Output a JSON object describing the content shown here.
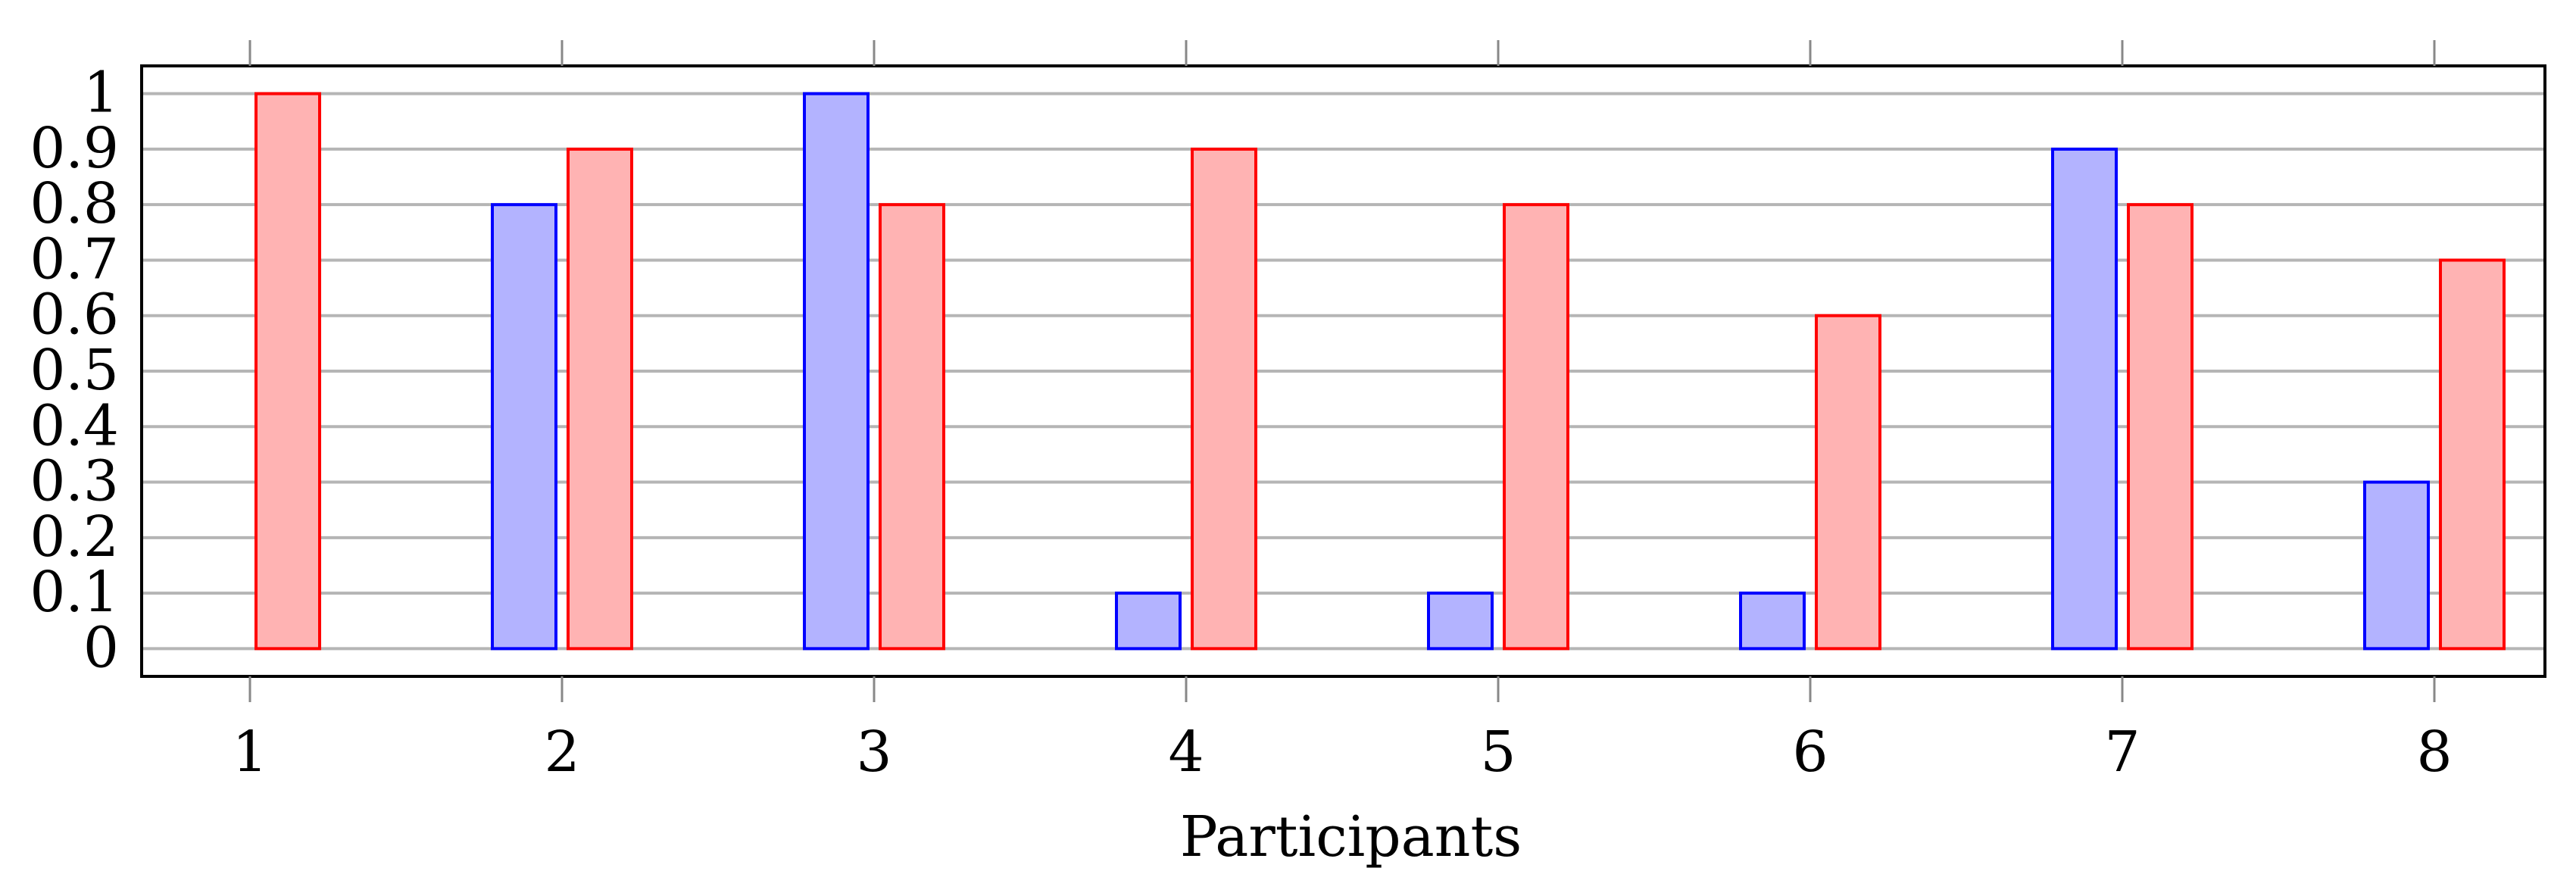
{
  "chart_data": {
    "type": "bar",
    "xlabel": "Participants",
    "ylabel": "",
    "title": "",
    "categories": [
      "1",
      "2",
      "3",
      "4",
      "5",
      "6",
      "7",
      "8"
    ],
    "y_ticks": [
      "0",
      "0.1",
      "0.2",
      "0.3",
      "0.4",
      "0.5",
      "0.6",
      "0.7",
      "0.8",
      "0.9",
      "1"
    ],
    "ylim": [
      -0.05,
      1.05
    ],
    "grid": "horizontal",
    "series": [
      {
        "values": [
          0,
          0.8,
          1.0,
          0.1,
          0.1,
          0.1,
          0.9,
          0.3
        ],
        "fill": "#b3b3ff",
        "stroke": "#0000ff"
      },
      {
        "values": [
          1.0,
          0.9,
          0.8,
          0.9,
          0.8,
          0.6,
          0.8,
          0.7
        ],
        "fill": "#ffb3b3",
        "stroke": "#ff0000"
      }
    ]
  }
}
